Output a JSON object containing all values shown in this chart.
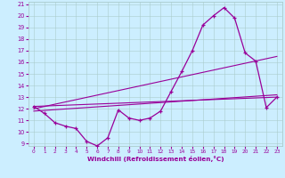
{
  "xlabel": "Windchill (Refroidissement éolien,°C)",
  "bg_color": "#cceeff",
  "line_color": "#990099",
  "xlim": [
    -0.5,
    23.5
  ],
  "ylim": [
    8.8,
    21.2
  ],
  "xticks": [
    0,
    1,
    2,
    3,
    4,
    5,
    6,
    7,
    8,
    9,
    10,
    11,
    12,
    13,
    14,
    15,
    16,
    17,
    18,
    19,
    20,
    21,
    22,
    23
  ],
  "yticks": [
    9,
    10,
    11,
    12,
    13,
    14,
    15,
    16,
    17,
    18,
    19,
    20,
    21
  ],
  "line1_x": [
    0,
    1,
    2,
    3,
    4,
    5,
    6,
    7,
    8,
    9,
    10,
    11,
    12,
    13,
    14,
    15,
    16,
    17,
    18,
    19,
    20,
    21,
    22,
    23
  ],
  "line1_y": [
    12.2,
    11.6,
    10.8,
    10.5,
    10.3,
    9.2,
    8.8,
    9.5,
    11.9,
    11.2,
    11.0,
    11.2,
    11.8,
    13.5,
    15.2,
    17.0,
    19.2,
    20.0,
    20.7,
    19.8,
    16.8,
    16.1,
    12.1,
    13.0
  ],
  "line2_x": [
    0,
    23
  ],
  "line2_y": [
    11.8,
    13.2
  ],
  "line3_x": [
    0,
    23
  ],
  "line3_y": [
    12.2,
    13.0
  ],
  "line4_x": [
    0,
    23
  ],
  "line4_y": [
    12.0,
    16.5
  ]
}
